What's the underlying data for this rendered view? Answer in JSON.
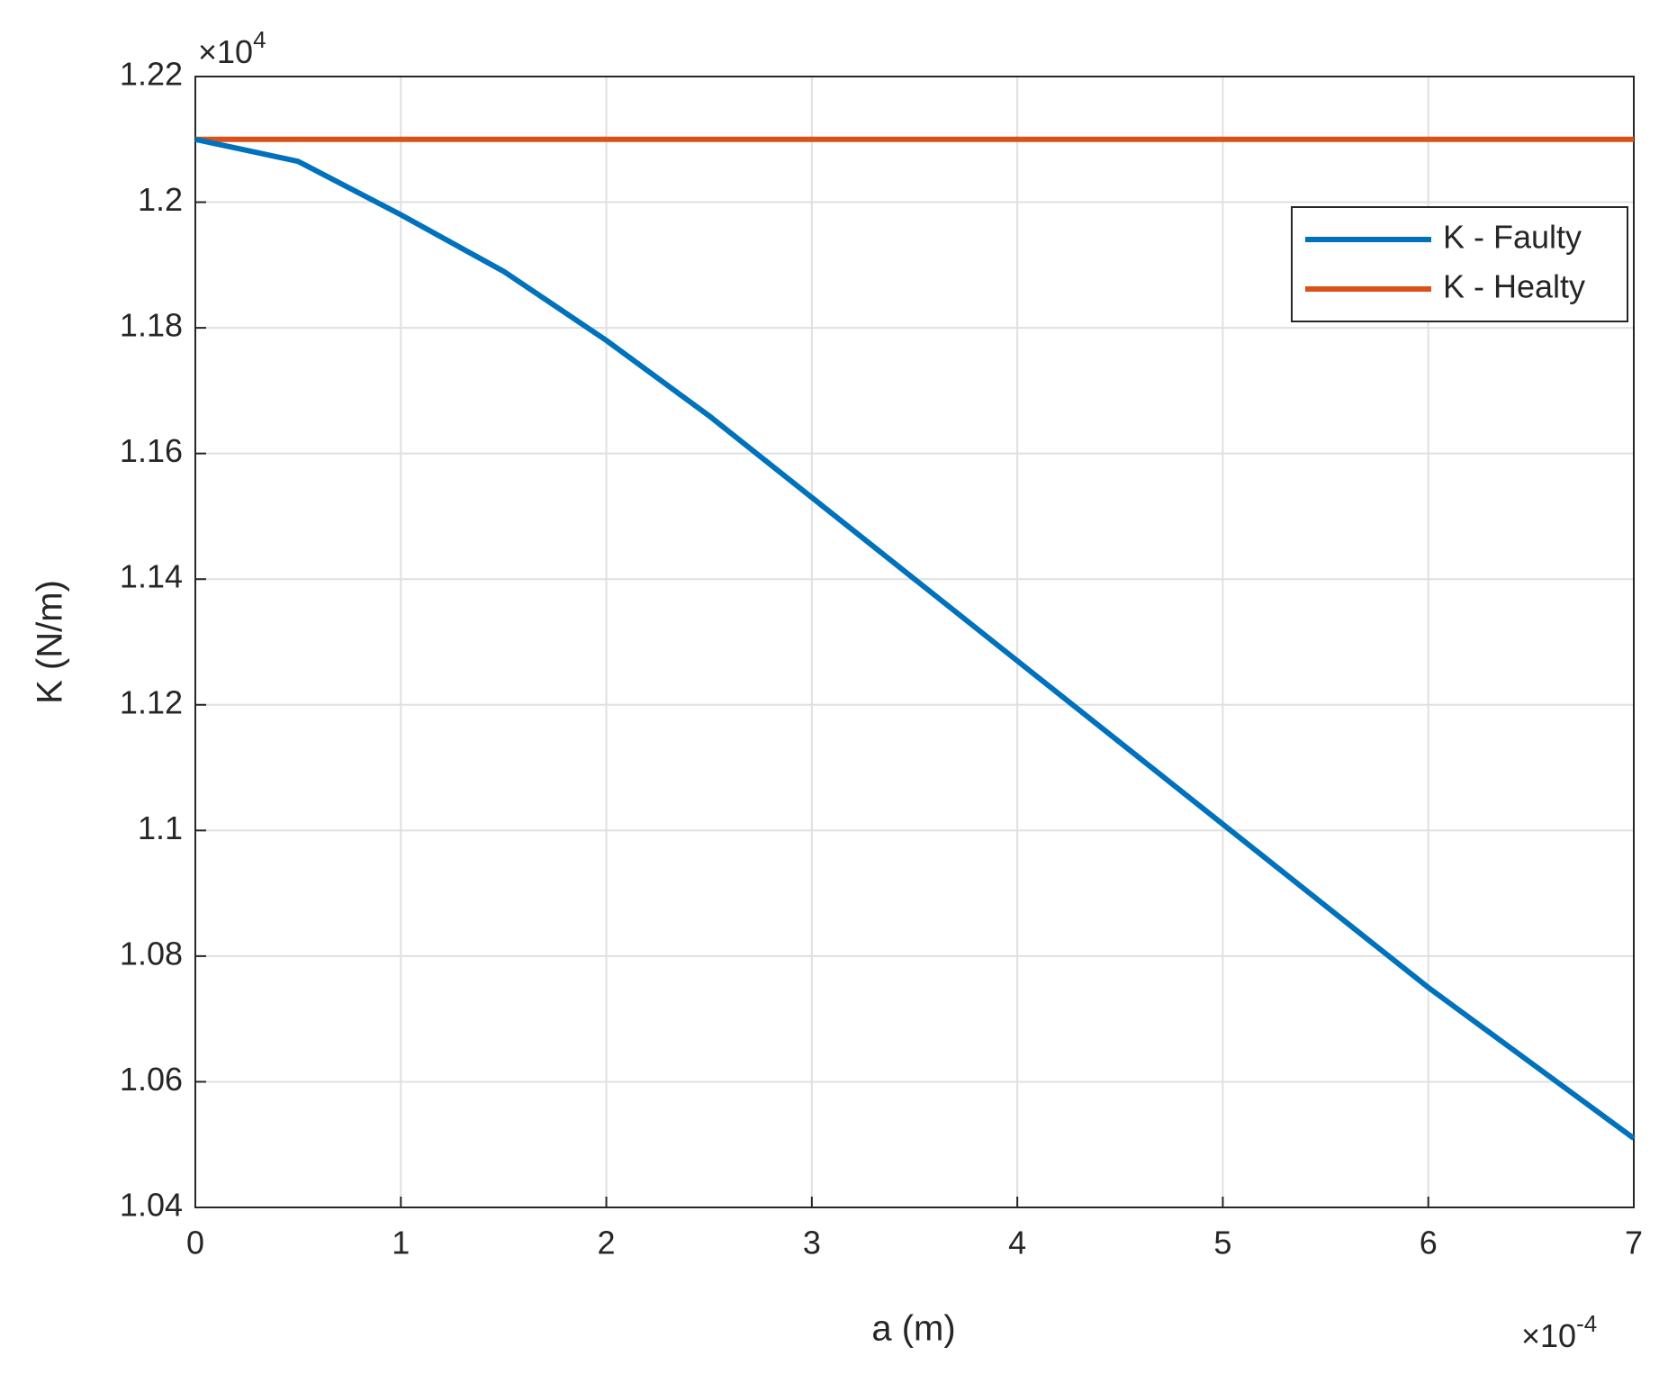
{
  "chart_data": {
    "type": "line",
    "x_label": "a (m)",
    "y_label": "K (N/m)",
    "x_multiplier": {
      "base": "×10",
      "exponent": "-4"
    },
    "y_multiplier": {
      "base": "×10",
      "exponent": "4"
    },
    "x": [
      0,
      0.5,
      1,
      1.5,
      2,
      2.5,
      3,
      3.5,
      4,
      4.5,
      5,
      5.5,
      6,
      6.5,
      7
    ],
    "series": [
      {
        "name": "K - Faulty",
        "color": "#0072bd",
        "values": [
          1.21,
          1.2065,
          1.198,
          1.189,
          1.178,
          1.166,
          1.153,
          1.14,
          1.127,
          1.114,
          1.101,
          1.088,
          1.075,
          1.063,
          1.051
        ]
      },
      {
        "name": "K - Healty",
        "color": "#d95319",
        "values": [
          1.21,
          1.21,
          1.21,
          1.21,
          1.21,
          1.21,
          1.21,
          1.21,
          1.21,
          1.21,
          1.21,
          1.21,
          1.21,
          1.21,
          1.21
        ]
      }
    ],
    "xlim": [
      0,
      7
    ],
    "xticks": [
      0,
      1,
      2,
      3,
      4,
      5,
      6,
      7
    ],
    "ylim": [
      1.04,
      1.22
    ],
    "yticks": [
      1.04,
      1.06,
      1.08,
      1.1,
      1.12,
      1.14,
      1.16,
      1.18,
      1.2,
      1.22
    ],
    "grid": true,
    "legend": "northeast"
  }
}
